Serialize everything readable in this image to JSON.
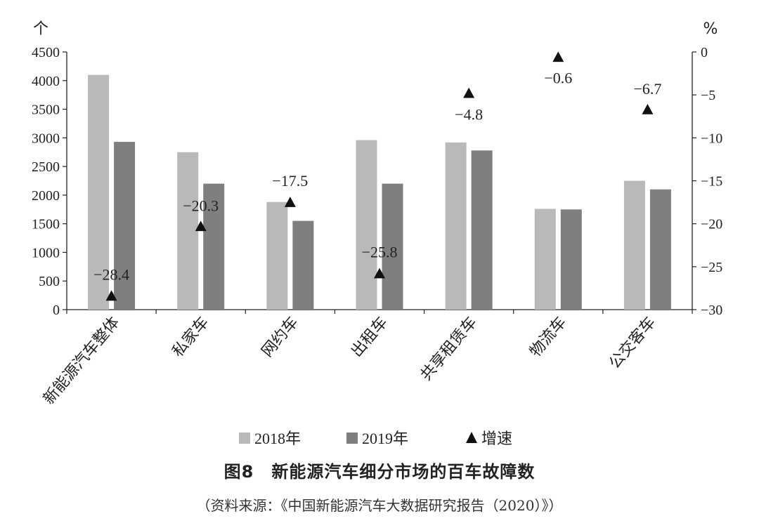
{
  "chart_data": {
    "type": "bar",
    "categories": [
      "新能源汽车整体",
      "私家车",
      "网约车",
      "出租车",
      "共享租赁车",
      "物流车",
      "公交客车"
    ],
    "series": [
      {
        "name": "2018年",
        "values": [
          4100,
          2750,
          1880,
          2960,
          2920,
          1760,
          2250
        ],
        "color": "#b9b9b9"
      },
      {
        "name": "2019年",
        "values": [
          2930,
          2200,
          1550,
          2200,
          2780,
          1750,
          2100
        ],
        "color": "#7f7f7f"
      }
    ],
    "growth": {
      "name": "增速",
      "values": [
        -28.4,
        -20.3,
        -17.5,
        -25.8,
        -4.8,
        -0.6,
        -6.7
      ],
      "labels": [
        "−28.4",
        "−20.3",
        "−17.5",
        "−25.8",
        "−4.8",
        "−0.6",
        "−6.7"
      ],
      "color": "#111111"
    },
    "y_left": {
      "unit": "个",
      "ylim": [
        0,
        4500
      ],
      "ticks": [
        "0",
        "500",
        "1000",
        "1500",
        "2000",
        "2500",
        "3000",
        "3500",
        "4000",
        "4500"
      ]
    },
    "y_right": {
      "unit": "%",
      "ylim": [
        -30,
        0
      ],
      "ticks": [
        "0",
        "−5",
        "−10",
        "−15",
        "−20",
        "−25",
        "−30"
      ]
    },
    "legend": {
      "position": "bottom",
      "items": [
        "2018年",
        "2019年",
        "增速"
      ]
    },
    "grid": false,
    "title": "图8　新能源汽车细分市场的百车故障数",
    "source": "（资料来源：《中国新能源汽车大数据研究报告（2020）》）"
  }
}
